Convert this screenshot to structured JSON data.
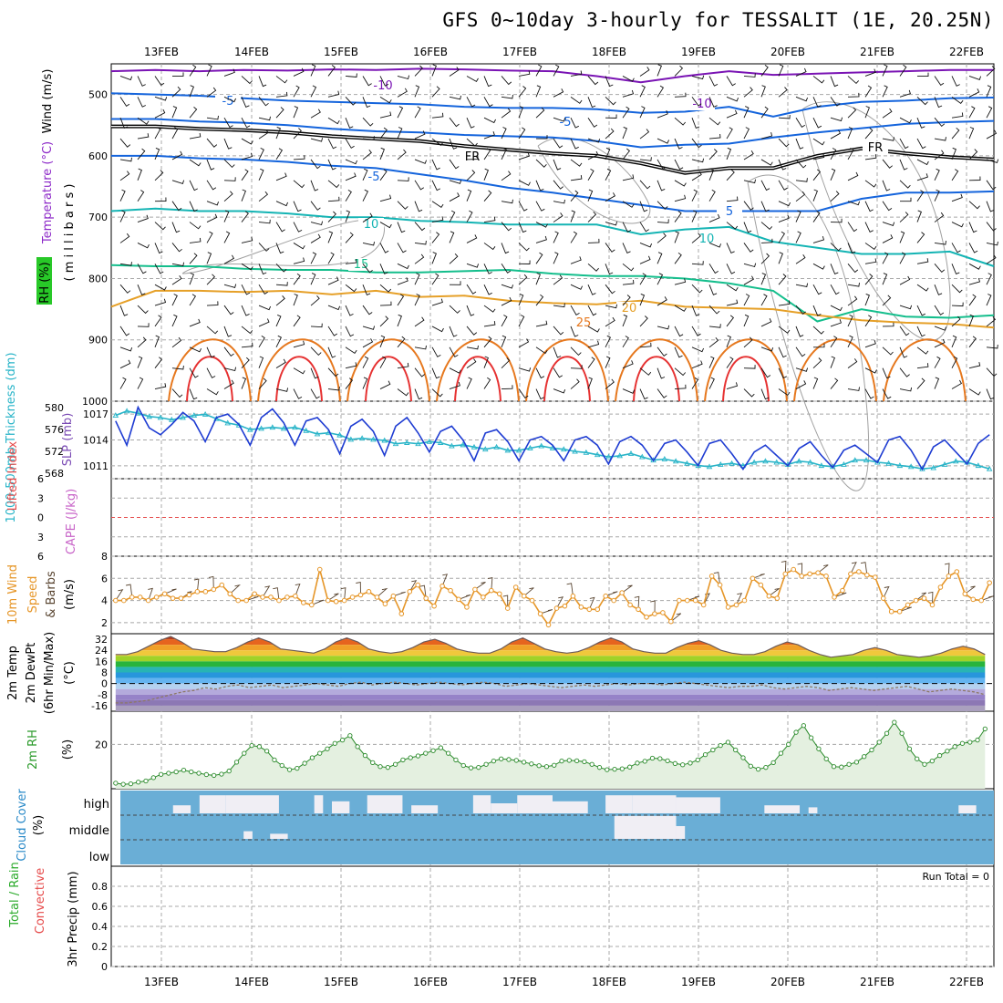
{
  "title": "GFS 0~10day 3-hourly for TESSALIT (1E, 20.25N)",
  "dates": [
    "13FEB",
    "14FEB",
    "15FEB",
    "16FEB",
    "17FEB",
    "18FEB",
    "19FEB",
    "20FEB",
    "21FEB",
    "22FEB"
  ],
  "run_total": "Run Total = 0",
  "panel_labels": {
    "upper_wind": "Wind (m/s)",
    "upper_temp": "Temperature (°C)",
    "upper_rh": "RH (%)",
    "upper_units": "( m i l l i b a r s )",
    "thickness": "1000-500mb Thickness (dm)",
    "slp": "SLP (mb)",
    "lifted": "Lifted Index",
    "cape": "CAPE (J/kg)",
    "wind10": "10m Wind",
    "wind10b": "Speed",
    "wind10c": "& Barbs",
    "wind10u": "(m/s)",
    "temp2m": "2m Temp",
    "dew2m": "2m DewPt",
    "minmax": "(6hr Min/Max)",
    "tempu": "(°C)",
    "rh2m": "2m RH",
    "rhu": "(%)",
    "cloud": "Cloud Cover",
    "cloudu": "(%)",
    "precip1": "3hr Precip (mm)",
    "precip2": "Total / Rain",
    "precip3": "Convective"
  },
  "colors": {
    "slp": "#1e3cd2",
    "thickness": "#28b4c8",
    "wind10": "#e69628",
    "rh": "#2a8a2a",
    "cloud_bg": "#6aaed6",
    "contour_cold": "#7a14b4",
    "contour_0": "#000000",
    "contour_5": "#1464dc",
    "contour_10": "#14b4b4",
    "contour_15": "#14be8c",
    "contour_20": "#e6a028",
    "contour_25": "#e6781e",
    "contour_30": "#e63232"
  },
  "chart_data": [
    {
      "type": "line",
      "name": "upper-air cross section",
      "y_axis": "pressure (mb)",
      "ylim": [
        1000,
        450
      ],
      "yticks": [
        500,
        600,
        700,
        800,
        900,
        1000
      ],
      "contour_labels": [
        "-10",
        "-10",
        "-5",
        "-5",
        "FR",
        "FR",
        "-5",
        "-5",
        "5",
        "10",
        "10",
        "15",
        "20",
        "25"
      ],
      "contours": [
        {
          "temp": -10,
          "color": "#7a14b4",
          "p": [
            462,
            460,
            462,
            460,
            461,
            459,
            460,
            458,
            459,
            461,
            462,
            470,
            480,
            470,
            462,
            468,
            466,
            464,
            462,
            460,
            460
          ]
        },
        {
          "temp": -5,
          "color": "#1464dc",
          "p": [
            498,
            500,
            502,
            506,
            510,
            512,
            514,
            516,
            520,
            522,
            522,
            524,
            530,
            528,
            520,
            536,
            520,
            512,
            510,
            506,
            505
          ]
        },
        {
          "temp": -5,
          "color": "#1464dc",
          "p": [
            540,
            540,
            544,
            546,
            550,
            556,
            560,
            562,
            566,
            568,
            570,
            576,
            586,
            582,
            580,
            570,
            562,
            555,
            548,
            545,
            543
          ]
        },
        {
          "temp": 0,
          "color": "#000000",
          "p": [
            552,
            552,
            556,
            558,
            562,
            568,
            572,
            576,
            584,
            590,
            596,
            600,
            612,
            628,
            620,
            620,
            600,
            588,
            596,
            602,
            606
          ]
        },
        {
          "temp": 5,
          "color": "#1464dc",
          "p": [
            600,
            600,
            604,
            606,
            610,
            616,
            620,
            630,
            640,
            652,
            660,
            670,
            680,
            690,
            690,
            690,
            690,
            670,
            660,
            660,
            658
          ]
        },
        {
          "temp": 10,
          "color": "#14b4b4",
          "p": [
            690,
            686,
            690,
            690,
            694,
            700,
            700,
            706,
            708,
            712,
            712,
            712,
            728,
            720,
            716,
            740,
            750,
            760,
            760,
            756,
            780
          ]
        },
        {
          "temp": 15,
          "color": "#14be8c",
          "p": [
            778,
            780,
            780,
            784,
            786,
            786,
            790,
            790,
            788,
            786,
            792,
            796,
            796,
            800,
            808,
            820,
            870,
            850,
            862,
            864,
            860
          ]
        },
        {
          "temp": 20,
          "color": "#e6a028",
          "p": [
            846,
            820,
            820,
            822,
            820,
            826,
            820,
            830,
            828,
            836,
            840,
            842,
            836,
            846,
            848,
            850,
            860,
            868,
            872,
            874,
            880
          ]
        }
      ]
    },
    {
      "type": "line",
      "name": "SLP and thickness",
      "ylabel": "SLP (mb)",
      "slp_ylim": [
        1009.5,
        1018.5
      ],
      "slp_ticks": [
        1011,
        1014,
        1017
      ],
      "thk_ylim": [
        567,
        581.2
      ],
      "thk_ticks": [
        568,
        572,
        576,
        580
      ],
      "series": [
        {
          "name": "SLP (mb)",
          "values": [
            1016.2,
            1013.4,
            1017.8,
            1015.4,
            1014.6,
            1015.8,
            1017.2,
            1016.2,
            1013.8,
            1016.6,
            1017.0,
            1015.8,
            1013.4,
            1016.6,
            1017.6,
            1016.0,
            1013.4,
            1016.2,
            1016.6,
            1015.2,
            1012.4,
            1015.6,
            1016.4,
            1015.0,
            1012.2,
            1015.6,
            1016.6,
            1014.8,
            1012.6,
            1015.0,
            1015.6,
            1014.0,
            1011.6,
            1014.8,
            1015.2,
            1013.8,
            1011.6,
            1014.0,
            1014.4,
            1013.4,
            1011.6,
            1014.0,
            1014.4,
            1013.4,
            1011.2,
            1013.8,
            1014.4,
            1013.4,
            1011.6,
            1013.6,
            1014.0,
            1012.6,
            1011.0,
            1013.6,
            1014.0,
            1012.4,
            1010.6,
            1012.6,
            1013.4,
            1012.2,
            1011.0,
            1013.0,
            1013.8,
            1012.2,
            1010.8,
            1012.8,
            1013.4,
            1012.4,
            1011.4,
            1014.0,
            1014.4,
            1012.8,
            1010.6,
            1013.2,
            1014.0,
            1012.6,
            1011.2,
            1013.6,
            1014.6
          ]
        },
        {
          "name": "1000-500mb Thickness (dm)",
          "values": [
            578.6,
            579.4,
            579.0,
            578.4,
            578.2,
            577.8,
            578.2,
            578.6,
            578.8,
            578.0,
            577.2,
            576.8,
            576.0,
            576.2,
            576.4,
            576.2,
            576.4,
            575.8,
            575.2,
            575.4,
            575.0,
            574.2,
            574.4,
            574.2,
            574.0,
            573.4,
            573.6,
            573.4,
            573.8,
            573.6,
            573.0,
            573.2,
            572.8,
            572.4,
            572.8,
            572.2,
            572.2,
            572.6,
            573.0,
            572.6,
            572.4,
            572.0,
            571.8,
            571.4,
            571.0,
            571.2,
            571.6,
            571.0,
            570.4,
            570.6,
            570.2,
            569.8,
            569.4,
            569.2,
            569.6,
            569.8,
            569.4,
            570.0,
            570.2,
            570.0,
            569.6,
            570.2,
            570.0,
            569.4,
            569.2,
            569.6,
            570.4,
            570.4,
            570.0,
            569.8,
            569.4,
            569.2,
            568.8,
            569.0,
            569.6,
            570.2,
            570.0,
            569.4,
            568.8
          ]
        }
      ]
    },
    {
      "type": "line",
      "name": "Lifted Index / CAPE",
      "ylim": [
        -6,
        6
      ],
      "yticks": [
        6,
        3,
        0,
        -3,
        -6
      ],
      "series": [
        {
          "name": "Lifted Index",
          "values": []
        }
      ]
    },
    {
      "type": "line",
      "name": "10m wind speed",
      "ylabel": "(m/s)",
      "ylim": [
        1,
        8
      ],
      "yticks": [
        2,
        4,
        6,
        8
      ],
      "series": [
        {
          "name": "10m Wind Speed",
          "values": [
            4.0,
            4.0,
            4.3,
            4.3,
            4.0,
            4.3,
            4.6,
            4.2,
            4.2,
            4.5,
            4.8,
            4.8,
            5.0,
            5.4,
            4.6,
            4.0,
            4.0,
            4.6,
            4.3,
            4.3,
            4.0,
            4.3,
            4.4,
            3.8,
            3.6,
            6.8,
            4.0,
            3.9,
            4.0,
            4.3,
            4.5,
            4.8,
            4.3,
            3.7,
            4.4,
            2.8,
            4.8,
            5.4,
            4.2,
            3.5,
            5.3,
            4.9,
            4.1,
            3.4,
            5.0,
            4.3,
            4.9,
            4.6,
            3.3,
            5.2,
            4.4,
            4.0,
            2.8,
            1.8,
            3.3,
            3.5,
            4.4,
            3.4,
            3.2,
            3.2,
            4.4,
            4.0,
            4.7,
            3.6,
            3.2,
            2.5,
            2.8,
            2.9,
            2.1,
            4.0,
            4.0,
            4.0,
            3.6,
            6.2,
            5.4,
            3.4,
            3.6,
            4.0,
            6.0,
            5.4,
            4.4,
            4.2,
            6.4,
            6.8,
            6.2,
            6.4,
            6.5,
            6.2,
            4.3,
            4.9,
            6.4,
            6.6,
            6.3,
            6.1,
            4.2,
            3.0,
            3.0,
            3.6,
            4.0,
            4.2,
            3.6,
            5.2,
            6.2,
            6.6,
            4.6,
            4.1,
            4.0,
            5.6
          ]
        }
      ]
    },
    {
      "type": "area",
      "name": "2m temperature and dew point",
      "ylabel": "(°C)",
      "ylim": [
        -20,
        36
      ],
      "yticks": [
        32,
        24,
        16,
        8,
        0,
        -8,
        -16
      ],
      "series": [
        {
          "name": "2m Temp",
          "values": [
            21,
            21,
            23,
            27,
            31,
            34,
            30,
            25,
            24,
            23,
            23,
            26,
            30,
            33,
            30,
            25,
            24,
            23,
            22,
            25,
            30,
            33,
            30,
            25,
            23,
            22,
            23,
            26,
            30,
            32,
            29,
            25,
            23,
            22,
            22,
            25,
            30,
            33,
            29,
            25,
            23,
            22,
            23,
            26,
            30,
            33,
            30,
            25,
            23,
            22,
            22,
            26,
            29,
            31,
            28,
            24,
            22,
            21,
            21,
            23,
            27,
            30,
            28,
            24,
            21,
            19,
            20,
            21,
            24,
            26,
            24,
            21,
            20,
            19,
            20,
            22,
            25,
            27,
            25,
            21
          ]
        },
        {
          "name": "2m DewPt",
          "values": [
            -14,
            -14,
            -13,
            -12,
            -10,
            -8,
            -6,
            -5,
            -3,
            -4,
            -2,
            -1,
            -3,
            -2,
            -1,
            -3,
            -2,
            -1,
            0,
            -1,
            -2,
            0,
            1,
            -1,
            0,
            1,
            0,
            -1,
            0,
            1,
            0,
            -1,
            0,
            1,
            0,
            -2,
            -1,
            0,
            -1,
            -2,
            -3,
            -2,
            -1,
            -2,
            -1,
            0,
            -1,
            0,
            0,
            -1,
            0,
            1,
            0,
            -1,
            -2,
            -3,
            -2,
            -2,
            -1,
            -3,
            -4,
            -3,
            -2,
            -3,
            -5,
            -4,
            -3,
            -4,
            -5,
            -4,
            -3,
            -2,
            -4,
            -6,
            -5,
            -4,
            -5,
            -6,
            -8
          ]
        }
      ]
    },
    {
      "type": "area",
      "name": "2m relative humidity",
      "ylabel": "(%)",
      "ylim": [
        0,
        35
      ],
      "yticks": [
        20
      ],
      "series": [
        {
          "name": "2m RH",
          "values": [
            2.5,
            2.0,
            2.2,
            3.0,
            3.5,
            5.0,
            6.5,
            7.0,
            7.6,
            8.4,
            7.6,
            7.0,
            6.4,
            6.0,
            6.6,
            8.0,
            12.0,
            16.0,
            19.5,
            19.0,
            17.0,
            13.0,
            10.5,
            8.6,
            9.2,
            11.5,
            14.0,
            16.0,
            18.0,
            20.5,
            22.0,
            24.0,
            19.0,
            15.0,
            11.8,
            10.0,
            9.6,
            11.0,
            13.0,
            14.0,
            14.8,
            16.0,
            17.2,
            18.5,
            16.0,
            13.0,
            10.5,
            9.4,
            9.6,
            11.0,
            12.5,
            13.5,
            13.2,
            12.8,
            12.0,
            11.2,
            10.4,
            10.0,
            10.6,
            12.5,
            12.8,
            12.6,
            12.2,
            11.0,
            9.6,
            8.6,
            8.8,
            9.0,
            9.8,
            11.6,
            12.4,
            13.8,
            13.6,
            12.6,
            11.4,
            10.8,
            11.6,
            13.0,
            15.4,
            17.5,
            19.5,
            21.0,
            17.5,
            14.0,
            10.2,
            8.8,
            9.6,
            11.8,
            16.0,
            20.0,
            25.5,
            28.5,
            23.0,
            18.0,
            13.5,
            10.0,
            9.8,
            11.0,
            12.0,
            14.5,
            17.5,
            21.0,
            25.0,
            30.0,
            25.0,
            18.0,
            13.5,
            11.0,
            12.5,
            15.0,
            17.0,
            19.0,
            20.5,
            21.0,
            22.0,
            27.0
          ]
        }
      ]
    },
    {
      "type": "heatmap",
      "name": "cloud cover",
      "ylabels": [
        "high",
        "middle",
        "low"
      ],
      "rows": {
        "high": [
          [
            0.07,
            0.09,
            0.4
          ],
          [
            0.1,
            0.13,
            0.9
          ],
          [
            0.13,
            0.19,
            0.9
          ],
          [
            0.2,
            0.2,
            0.6
          ],
          [
            0.23,
            0.24,
            0.9
          ],
          [
            0.25,
            0.27,
            0.6
          ],
          [
            0.29,
            0.33,
            0.9
          ],
          [
            0.34,
            0.37,
            0.4
          ],
          [
            0.41,
            0.43,
            0.9
          ],
          [
            0.43,
            0.46,
            0.5
          ],
          [
            0.46,
            0.5,
            0.9
          ],
          [
            0.5,
            0.54,
            0.6
          ],
          [
            0.56,
            0.59,
            0.9
          ],
          [
            0.59,
            0.64,
            0.9
          ],
          [
            0.64,
            0.69,
            0.8
          ],
          [
            0.74,
            0.78,
            0.4
          ],
          [
            0.79,
            0.8,
            0.3
          ],
          [
            0.96,
            0.98,
            0.4
          ]
        ],
        "middle": [
          [
            0.15,
            0.16,
            0.3
          ],
          [
            0.18,
            0.2,
            0.2
          ],
          [
            0.57,
            0.64,
            0.9
          ],
          [
            0.64,
            0.65,
            0.5
          ]
        ],
        "low": []
      }
    },
    {
      "type": "bar",
      "name": "3hr precipitation",
      "ylabel": "3hr Precip (mm)",
      "ylim": [
        0,
        1
      ],
      "yticks": [
        0,
        0.2,
        0.4,
        0.6,
        0.8
      ],
      "series": [
        {
          "name": "Total / Rain",
          "values": []
        },
        {
          "name": "Convective",
          "values": []
        }
      ]
    }
  ]
}
